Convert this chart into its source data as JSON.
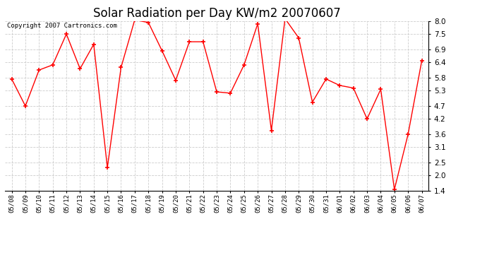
{
  "title": "Solar Radiation per Day KW/m2 20070607",
  "copyright_text": "Copyright 2007 Cartronics.com",
  "dates": [
    "05/08",
    "05/09",
    "05/10",
    "05/11",
    "05/12",
    "05/13",
    "05/14",
    "05/15",
    "05/16",
    "05/17",
    "05/18",
    "05/19",
    "05/20",
    "05/21",
    "05/22",
    "05/23",
    "05/24",
    "05/25",
    "05/26",
    "05/27",
    "05/28",
    "05/29",
    "05/30",
    "05/31",
    "06/01",
    "06/02",
    "06/03",
    "06/04",
    "06/05",
    "06/06",
    "06/07"
  ],
  "values": [
    5.75,
    4.7,
    6.1,
    6.3,
    7.5,
    6.15,
    7.1,
    2.3,
    6.2,
    8.05,
    7.95,
    6.85,
    5.7,
    7.2,
    7.2,
    5.25,
    5.2,
    6.3,
    7.9,
    3.75,
    8.1,
    7.35,
    4.85,
    5.75,
    5.5,
    5.4,
    4.2,
    5.35,
    1.45,
    3.6,
    6.45
  ],
  "line_color": "#ff0000",
  "marker": "+",
  "marker_size": 5,
  "marker_linewidth": 1.2,
  "line_width": 1.0,
  "background_color": "#ffffff",
  "grid_color": "#cccccc",
  "grid_linestyle": "--",
  "ylim_min": 1.4,
  "ylim_max": 8.0,
  "yticks": [
    1.4,
    2.0,
    2.5,
    3.1,
    3.6,
    4.2,
    4.7,
    5.3,
    5.8,
    6.4,
    6.9,
    7.5,
    8.0
  ],
  "title_fontsize": 12,
  "copyright_fontsize": 6.5,
  "xtick_fontsize": 6.5,
  "ytick_fontsize": 7.5
}
